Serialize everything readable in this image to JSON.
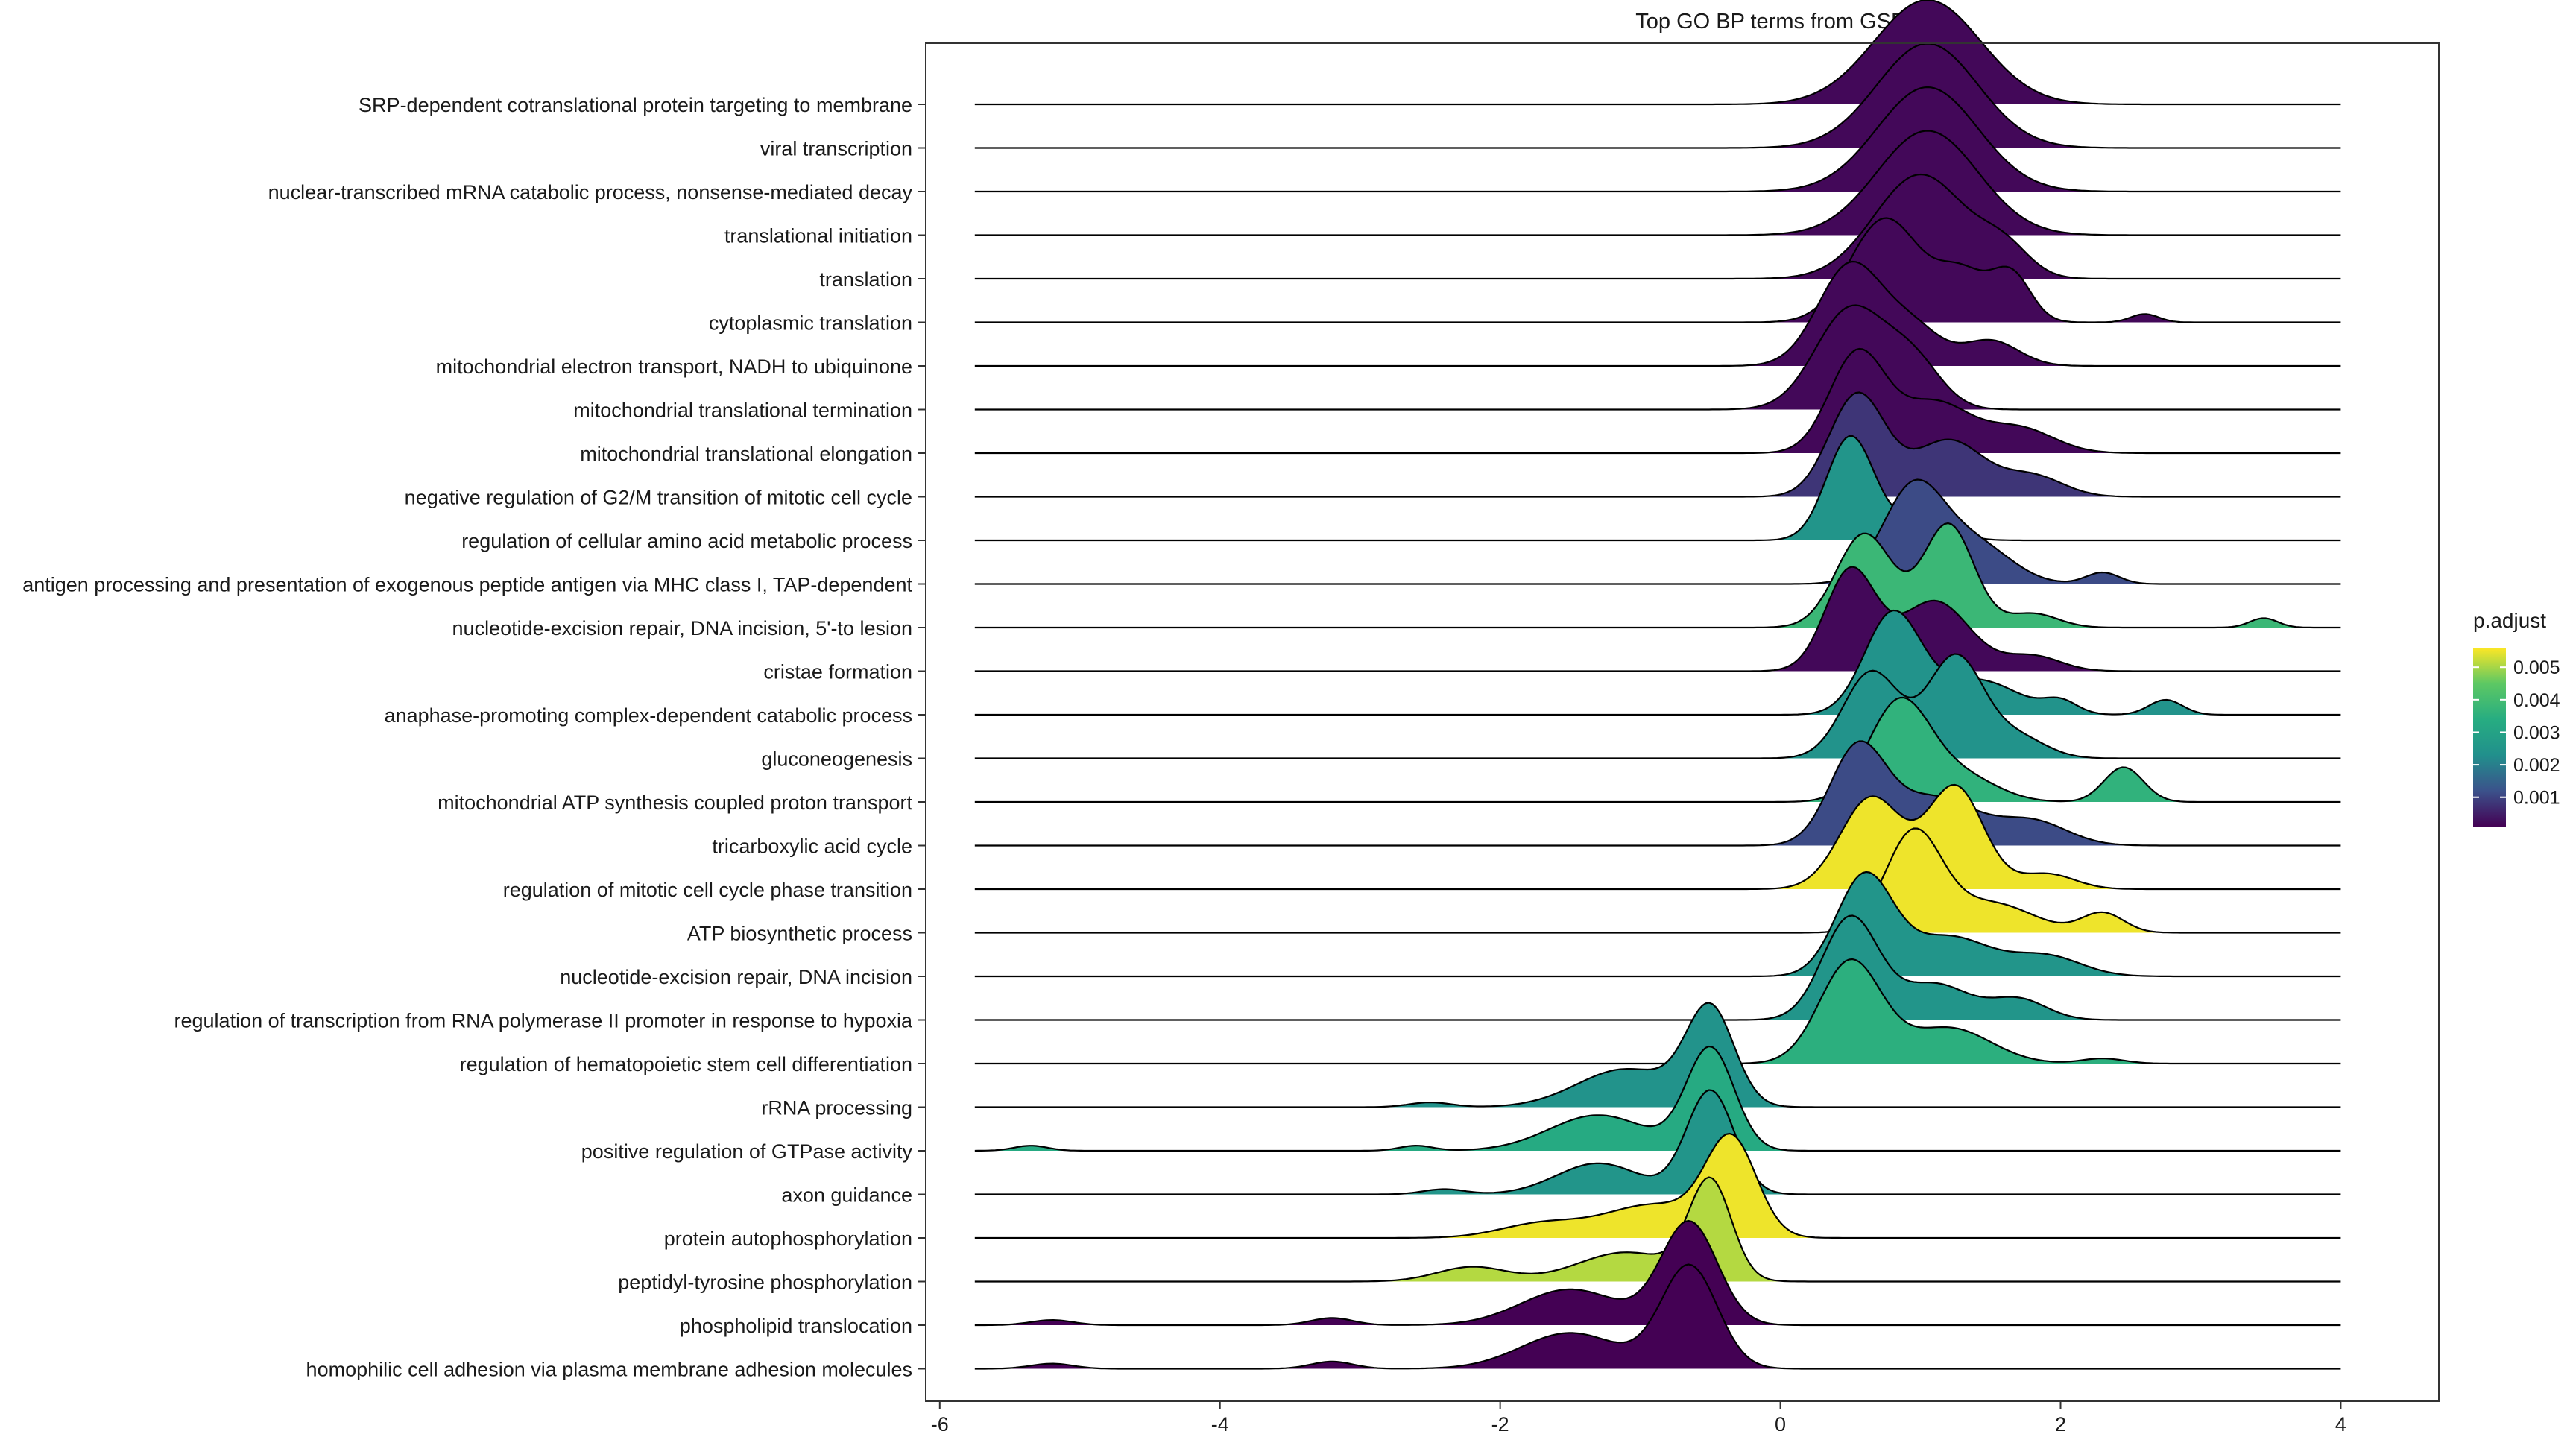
{
  "chart_data": {
    "type": "ridgeline",
    "title": "Top GO BP terms from GSEA",
    "xlabel": "",
    "ylabel": "",
    "xlim": [
      -6.1,
      4.7
    ],
    "xticks": [
      -6,
      -4,
      -2,
      0,
      2,
      4
    ],
    "xtick_labels": [
      "-6",
      "-4",
      "-2",
      "0",
      "2",
      "4"
    ],
    "grid": false,
    "legend": {
      "title": "p.adjust",
      "position": "right",
      "ticks": [
        0.005,
        0.004,
        0.003,
        0.002,
        0.001
      ],
      "tick_labels": [
        "0.005",
        "0.004",
        "0.003",
        "0.002",
        "0.001"
      ],
      "range": [
        0.0001,
        0.0056
      ],
      "colors": [
        "#440154",
        "#3B528B",
        "#21908C",
        "#27AD81",
        "#5DC863",
        "#FDE725"
      ]
    },
    "x_extent": [
      -5.75,
      4.0
    ],
    "series": [
      {
        "name": "SRP-dependent cotranslational protein targeting to membrane",
        "p_adjust": 0.0002,
        "components": [
          [
            1.05,
            0.38,
            1.0
          ]
        ]
      },
      {
        "name": "viral transcription",
        "p_adjust": 0.0002,
        "components": [
          [
            1.05,
            0.36,
            1.0
          ]
        ]
      },
      {
        "name": "nuclear-transcribed mRNA catabolic process, nonsense-mediated decay",
        "p_adjust": 0.0002,
        "components": [
          [
            1.05,
            0.36,
            1.0
          ]
        ]
      },
      {
        "name": "translational initiation",
        "p_adjust": 0.0002,
        "components": [
          [
            1.05,
            0.36,
            1.0
          ]
        ]
      },
      {
        "name": "translation",
        "p_adjust": 0.0002,
        "components": [
          [
            1.0,
            0.33,
            1.0
          ],
          [
            1.6,
            0.18,
            0.25
          ]
        ]
      },
      {
        "name": "cytoplasmic translation",
        "p_adjust": 0.0002,
        "components": [
          [
            0.75,
            0.25,
            1.0
          ],
          [
            1.3,
            0.18,
            0.45
          ],
          [
            1.65,
            0.14,
            0.45
          ],
          [
            2.6,
            0.1,
            0.08
          ]
        ]
      },
      {
        "name": "mitochondrial electron transport, NADH to ubiquinone",
        "p_adjust": 0.0002,
        "components": [
          [
            0.5,
            0.23,
            1.0
          ],
          [
            0.95,
            0.2,
            0.35
          ],
          [
            1.5,
            0.2,
            0.25
          ]
        ]
      },
      {
        "name": "mitochondrial translational termination",
        "p_adjust": 0.0002,
        "components": [
          [
            0.5,
            0.25,
            1.0
          ],
          [
            0.95,
            0.2,
            0.45
          ]
        ]
      },
      {
        "name": "mitochondrial translational elongation",
        "p_adjust": 0.0002,
        "components": [
          [
            0.55,
            0.2,
            1.0
          ],
          [
            1.1,
            0.25,
            0.5
          ],
          [
            1.7,
            0.25,
            0.25
          ]
        ]
      },
      {
        "name": "negative regulation of G2/M transition of mitotic cell cycle",
        "p_adjust": 0.0008,
        "components": [
          [
            0.55,
            0.2,
            1.0
          ],
          [
            1.2,
            0.25,
            0.55
          ],
          [
            1.8,
            0.22,
            0.2
          ]
        ]
      },
      {
        "name": "regulation of cellular amino acid metabolic process",
        "p_adjust": 0.0025,
        "components": [
          [
            0.5,
            0.17,
            1.0
          ],
          [
            1.0,
            0.2,
            0.2
          ]
        ]
      },
      {
        "name": "antigen processing and presentation of exogenous peptide antigen via MHC class I, TAP-dependent",
        "p_adjust": 0.0011,
        "components": [
          [
            0.95,
            0.22,
            1.0
          ],
          [
            1.4,
            0.25,
            0.4
          ],
          [
            2.3,
            0.12,
            0.12
          ]
        ]
      },
      {
        "name": "nucleotide-excision repair, DNA incision, 5'-to lesion",
        "p_adjust": 0.0038,
        "components": [
          [
            0.6,
            0.2,
            1.0
          ],
          [
            1.2,
            0.18,
            1.1
          ],
          [
            1.8,
            0.18,
            0.15
          ],
          [
            3.45,
            0.1,
            0.1
          ]
        ]
      },
      {
        "name": "cristae formation",
        "p_adjust": 0.0002,
        "components": [
          [
            0.5,
            0.18,
            1.0
          ],
          [
            1.1,
            0.25,
            0.7
          ],
          [
            1.8,
            0.2,
            0.15
          ]
        ]
      },
      {
        "name": "anaphase-promoting complex-dependent catabolic process",
        "p_adjust": 0.0024,
        "components": [
          [
            0.8,
            0.2,
            1.0
          ],
          [
            1.4,
            0.3,
            0.35
          ],
          [
            2.0,
            0.12,
            0.12
          ],
          [
            2.75,
            0.12,
            0.15
          ]
        ]
      },
      {
        "name": "gluconeogenesis",
        "p_adjust": 0.0024,
        "components": [
          [
            0.65,
            0.2,
            0.85
          ],
          [
            1.25,
            0.2,
            1.0
          ],
          [
            1.7,
            0.2,
            0.2
          ]
        ]
      },
      {
        "name": "mitochondrial ATP synthesis coupled proton transport",
        "p_adjust": 0.0036,
        "components": [
          [
            0.85,
            0.22,
            1.0
          ],
          [
            1.3,
            0.25,
            0.25
          ],
          [
            2.45,
            0.14,
            0.35
          ]
        ]
      },
      {
        "name": "tricarboxylic acid cycle",
        "p_adjust": 0.0011,
        "components": [
          [
            0.55,
            0.2,
            1.0
          ],
          [
            1.1,
            0.3,
            0.5
          ],
          [
            1.8,
            0.25,
            0.25
          ]
        ]
      },
      {
        "name": "regulation of mitotic cell cycle phase transition",
        "p_adjust": 0.0055,
        "components": [
          [
            0.65,
            0.22,
            0.9
          ],
          [
            1.25,
            0.2,
            1.0
          ],
          [
            1.9,
            0.2,
            0.15
          ]
        ]
      },
      {
        "name": "ATP biosynthetic process",
        "p_adjust": 0.0055,
        "components": [
          [
            0.95,
            0.2,
            1.0
          ],
          [
            1.5,
            0.3,
            0.3
          ],
          [
            2.3,
            0.15,
            0.2
          ]
        ]
      },
      {
        "name": "nucleotide-excision repair, DNA incision",
        "p_adjust": 0.0025,
        "components": [
          [
            0.6,
            0.2,
            1.0
          ],
          [
            1.2,
            0.3,
            0.4
          ],
          [
            1.9,
            0.25,
            0.2
          ]
        ]
      },
      {
        "name": "regulation of transcription from RNA polymerase II promoter in response to hypoxia",
        "p_adjust": 0.0025,
        "components": [
          [
            0.5,
            0.2,
            1.0
          ],
          [
            1.1,
            0.25,
            0.35
          ],
          [
            1.7,
            0.2,
            0.2
          ]
        ]
      },
      {
        "name": "regulation of hematopoietic stem cell differentiation",
        "p_adjust": 0.0035,
        "components": [
          [
            0.5,
            0.22,
            1.0
          ],
          [
            1.2,
            0.3,
            0.35
          ],
          [
            2.3,
            0.15,
            0.05
          ]
        ]
      },
      {
        "name": "rRNA processing",
        "p_adjust": 0.0024,
        "components": [
          [
            -0.5,
            0.17,
            1.0
          ],
          [
            -1.1,
            0.35,
            0.4
          ],
          [
            -2.5,
            0.15,
            0.05
          ]
        ]
      },
      {
        "name": "positive regulation of GTPase activity",
        "p_adjust": 0.0033,
        "components": [
          [
            -0.5,
            0.17,
            1.0
          ],
          [
            -1.3,
            0.35,
            0.35
          ],
          [
            -2.6,
            0.12,
            0.05
          ],
          [
            -5.35,
            0.12,
            0.05
          ]
        ]
      },
      {
        "name": "axon guidance",
        "p_adjust": 0.0025,
        "components": [
          [
            -0.5,
            0.17,
            1.0
          ],
          [
            -1.3,
            0.3,
            0.3
          ],
          [
            -2.4,
            0.15,
            0.05
          ]
        ]
      },
      {
        "name": "protein autophosphorylation",
        "p_adjust": 0.0055,
        "components": [
          [
            -0.35,
            0.18,
            1.0
          ],
          [
            -0.9,
            0.35,
            0.35
          ],
          [
            -1.7,
            0.3,
            0.15
          ]
        ]
      },
      {
        "name": "peptidyl-tyrosine phosphorylation",
        "p_adjust": 0.0051,
        "components": [
          [
            -0.5,
            0.15,
            1.0
          ],
          [
            -1.1,
            0.35,
            0.3
          ],
          [
            -2.2,
            0.25,
            0.15
          ]
        ]
      },
      {
        "name": "phospholipid translocation",
        "p_adjust": 0.0001,
        "components": [
          [
            -0.65,
            0.2,
            1.0
          ],
          [
            -1.5,
            0.35,
            0.35
          ],
          [
            -3.2,
            0.15,
            0.07
          ],
          [
            -5.2,
            0.15,
            0.05
          ]
        ]
      },
      {
        "name": "homophilic cell adhesion via plasma membrane adhesion molecules",
        "p_adjust": 0.0001,
        "components": [
          [
            -0.65,
            0.2,
            1.0
          ],
          [
            -1.5,
            0.35,
            0.35
          ],
          [
            -3.2,
            0.15,
            0.07
          ],
          [
            -5.2,
            0.15,
            0.05
          ]
        ]
      }
    ]
  }
}
